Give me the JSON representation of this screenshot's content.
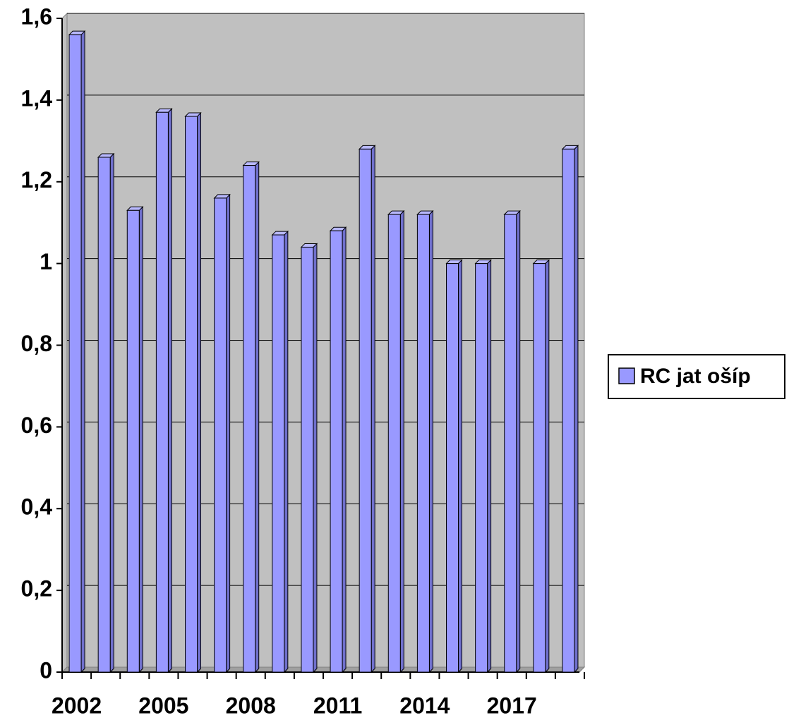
{
  "chart_data": {
    "type": "bar",
    "categories": [
      "2002",
      null,
      null,
      "2005",
      null,
      null,
      "2008",
      null,
      null,
      "2011",
      null,
      null,
      "2014",
      null,
      null,
      "2017",
      null,
      null
    ],
    "series": [
      {
        "name": "RC jat ošíp",
        "color": "#9999ff",
        "values": [
          1.56,
          1.26,
          1.13,
          1.37,
          1.36,
          1.16,
          1.24,
          1.07,
          1.04,
          1.08,
          1.28,
          1.12,
          1.12,
          1.0,
          1.0,
          1.12,
          1.0,
          1.28
        ]
      }
    ],
    "ylim": [
      0,
      1.6
    ],
    "yticks": [
      0,
      {
        "value": 0.2,
        "label": "0,2"
      },
      {
        "value": 0.4,
        "label": "0,4"
      },
      {
        "value": 0.6,
        "label": "0,6"
      },
      {
        "value": 0.8,
        "label": "0,8"
      },
      1,
      {
        "value": 1.2,
        "label": "1,2"
      },
      {
        "value": 1.4,
        "label": "1,4"
      },
      {
        "value": 1.6,
        "label": "1,6"
      }
    ],
    "grid": true,
    "legend": "right"
  }
}
